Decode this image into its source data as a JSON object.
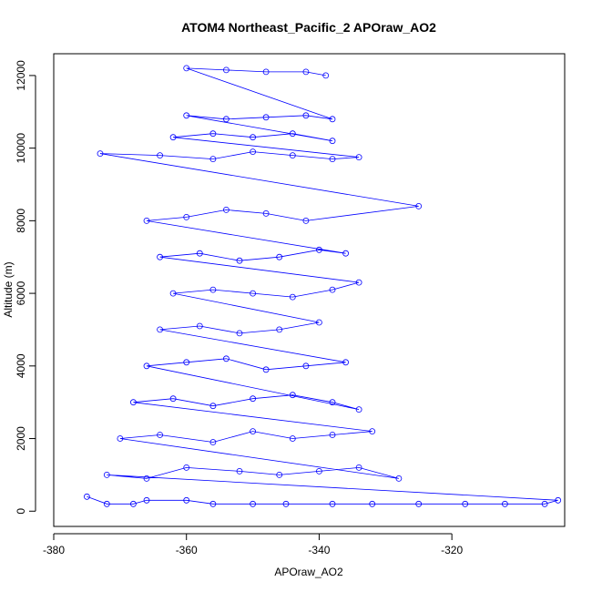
{
  "chart_data": {
    "type": "scatter",
    "title": "ATOM4 Northeast_Pacific_2 APOraw_AO2",
    "xlabel": "APOraw_AO2",
    "ylabel": "Altitude (m)",
    "xlim": [
      -380,
      -303
    ],
    "ylim": [
      -420,
      12600
    ],
    "xticks": [
      -380,
      -360,
      -340,
      -320
    ],
    "yticks": [
      0,
      2000,
      4000,
      6000,
      8000,
      10000,
      12000
    ],
    "marker": "open-circle",
    "connected_with_lines": true,
    "series": [
      {
        "color": "#0000ff",
        "points_note": "Dense vertical profile data; approximate envelope reproduced below",
        "x": [
          -375,
          -372,
          -368,
          -366,
          -360,
          -356,
          -350,
          -345,
          -338,
          -332,
          -325,
          -318,
          -312,
          -306,
          -304,
          -372,
          -366,
          -360,
          -352,
          -346,
          -340,
          -334,
          -328,
          -370,
          -364,
          -356,
          -350,
          -344,
          -338,
          -332,
          -368,
          -362,
          -356,
          -350,
          -344,
          -338,
          -334,
          -366,
          -360,
          -354,
          -348,
          -342,
          -336,
          -364,
          -358,
          -352,
          -346,
          -340,
          -362,
          -356,
          -350,
          -344,
          -338,
          -334,
          -364,
          -358,
          -352,
          -346,
          -340,
          -336,
          -366,
          -360,
          -354,
          -348,
          -342,
          -325,
          -373,
          -364,
          -356,
          -350,
          -344,
          -338,
          -334,
          -362,
          -356,
          -350,
          -344,
          -338,
          -360,
          -354,
          -348,
          -342,
          -338,
          -360,
          -354,
          -348,
          -342,
          -339
        ],
        "y": [
          400,
          200,
          200,
          300,
          300,
          200,
          200,
          200,
          200,
          200,
          200,
          200,
          200,
          200,
          300,
          1000,
          900,
          1200,
          1100,
          1000,
          1100,
          1200,
          900,
          2000,
          2100,
          1900,
          2200,
          2000,
          2100,
          2200,
          3000,
          3100,
          2900,
          3100,
          3200,
          3000,
          2800,
          4000,
          4100,
          4200,
          3900,
          4000,
          4100,
          5000,
          5100,
          4900,
          5000,
          5200,
          6000,
          6100,
          6000,
          5900,
          6100,
          6300,
          7000,
          7100,
          6900,
          7000,
          7200,
          7100,
          8000,
          8100,
          8300,
          8200,
          8000,
          8400,
          9850,
          9800,
          9700,
          9900,
          9800,
          9700,
          9750,
          10300,
          10400,
          10300,
          10400,
          10200,
          10900,
          10800,
          10850,
          10900,
          10800,
          12200,
          12150,
          12100,
          12100,
          12000
        ]
      }
    ]
  }
}
